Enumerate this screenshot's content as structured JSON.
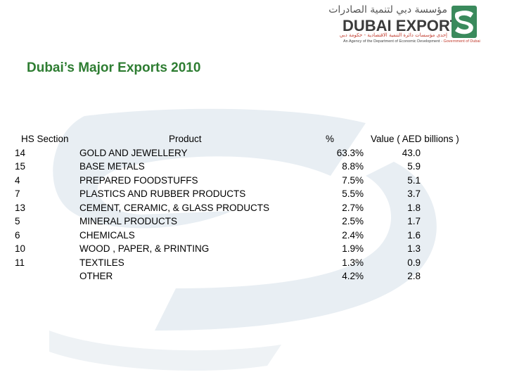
{
  "logo": {
    "arabic_name": "مؤسسة دبي لتنمية الصادرات",
    "name": "DUBAI EXPORTS",
    "arabic_subline": "إحدى مؤسسات دائرة التنمية الاقتصادية - حكومة دبي",
    "tagline": "An Agency of the Department of Economic Development - ",
    "tagline_gov": "Government of Dubai",
    "colors": {
      "brand_green": "#3a8a5c",
      "brand_red": "#c0392b"
    }
  },
  "slide": {
    "title": "Dubai’s Major Exports 2010",
    "title_color": "#2e7d32"
  },
  "table": {
    "headers": {
      "hs": "HS Section",
      "product": "Product",
      "pct": "%",
      "value": "Value ( AED billions )"
    },
    "rows": [
      {
        "hs": "14",
        "product": "GOLD AND JEWELLERY",
        "pct": "63.3%",
        "value": "43.0"
      },
      {
        "hs": "15",
        "product": "BASE METALS",
        "pct": "8.8%",
        "value": "5.9"
      },
      {
        "hs": "4",
        "product": "PREPARED FOODSTUFFS",
        "pct": "7.5%",
        "value": "5.1"
      },
      {
        "hs": "7",
        "product": "PLASTICS AND RUBBER PRODUCTS",
        "pct": "5.5%",
        "value": "3.7"
      },
      {
        "hs": "13",
        "product": "CEMENT, CERAMIC, & GLASS PRODUCTS",
        "pct": "2.7%",
        "value": "1.8"
      },
      {
        "hs": "5",
        "product": "MINERAL PRODUCTS",
        "pct": "2.5%",
        "value": "1.7"
      },
      {
        "hs": "6",
        "product": "CHEMICALS",
        "pct": "2.4%",
        "value": "1.6"
      },
      {
        "hs": "10",
        "product": "WOOD , PAPER, & PRINTING",
        "pct": "1.9%",
        "value": "1.3"
      },
      {
        "hs": "11",
        "product": "TEXTILES",
        "pct": "1.3%",
        "value": "0.9"
      },
      {
        "hs": "",
        "product": "OTHER",
        "pct": "4.2%",
        "value": "2.8"
      }
    ]
  }
}
